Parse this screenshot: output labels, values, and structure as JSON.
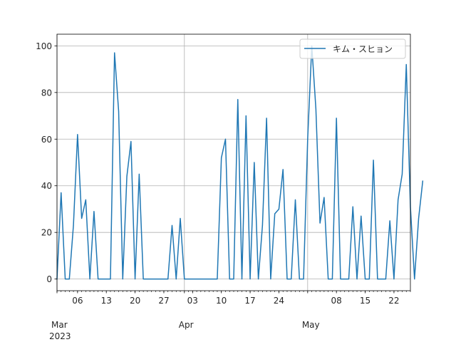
{
  "chart_data": {
    "type": "line",
    "title": "",
    "xlabel": "",
    "ylabel": "",
    "x_start": "2023-03-01",
    "x_end": "2023-05-26",
    "xlim": [
      "2023-03-01",
      "2023-05-26"
    ],
    "ylim": [
      -5,
      105
    ],
    "grid": true,
    "legend_position": "top-right",
    "y_ticks": [
      0,
      20,
      40,
      60,
      80,
      100
    ],
    "x_ticks_major": [
      {
        "date": "2023-03-01",
        "label": "Mar"
      },
      {
        "date": "2023-04-01",
        "label": "Apr"
      },
      {
        "date": "2023-05-01",
        "label": "May"
      }
    ],
    "x_year_label": "2023",
    "x_ticks_minor": [
      {
        "date": "2023-03-06",
        "label": "06"
      },
      {
        "date": "2023-03-13",
        "label": "13"
      },
      {
        "date": "2023-03-20",
        "label": "20"
      },
      {
        "date": "2023-03-27",
        "label": "27"
      },
      {
        "date": "2023-04-03",
        "label": "03"
      },
      {
        "date": "2023-04-10",
        "label": "10"
      },
      {
        "date": "2023-04-17",
        "label": "17"
      },
      {
        "date": "2023-04-24",
        "label": "24"
      },
      {
        "date": "2023-05-08",
        "label": "08"
      },
      {
        "date": "2023-05-15",
        "label": "15"
      },
      {
        "date": "2023-05-22",
        "label": "22"
      }
    ],
    "series": [
      {
        "name": "キム・スヒョン",
        "color": "#1f77b4",
        "values": [
          0,
          37,
          0,
          0,
          23,
          62,
          26,
          34,
          0,
          29,
          0,
          0,
          0,
          0,
          97,
          72,
          0,
          44,
          59,
          0,
          45,
          0,
          0,
          0,
          0,
          0,
          0,
          0,
          23,
          0,
          26,
          0,
          0,
          0,
          0,
          0,
          0,
          0,
          0,
          0,
          52,
          60,
          0,
          0,
          77,
          0,
          70,
          0,
          50,
          0,
          23,
          69,
          0,
          28,
          30,
          47,
          0,
          0,
          34,
          0,
          0,
          60,
          100,
          73,
          24,
          35,
          0,
          0,
          69,
          0,
          0,
          0,
          31,
          0,
          27,
          0,
          0,
          51,
          0,
          0,
          0,
          25,
          0,
          34,
          45,
          92,
          31,
          0,
          26,
          42
        ]
      }
    ]
  }
}
